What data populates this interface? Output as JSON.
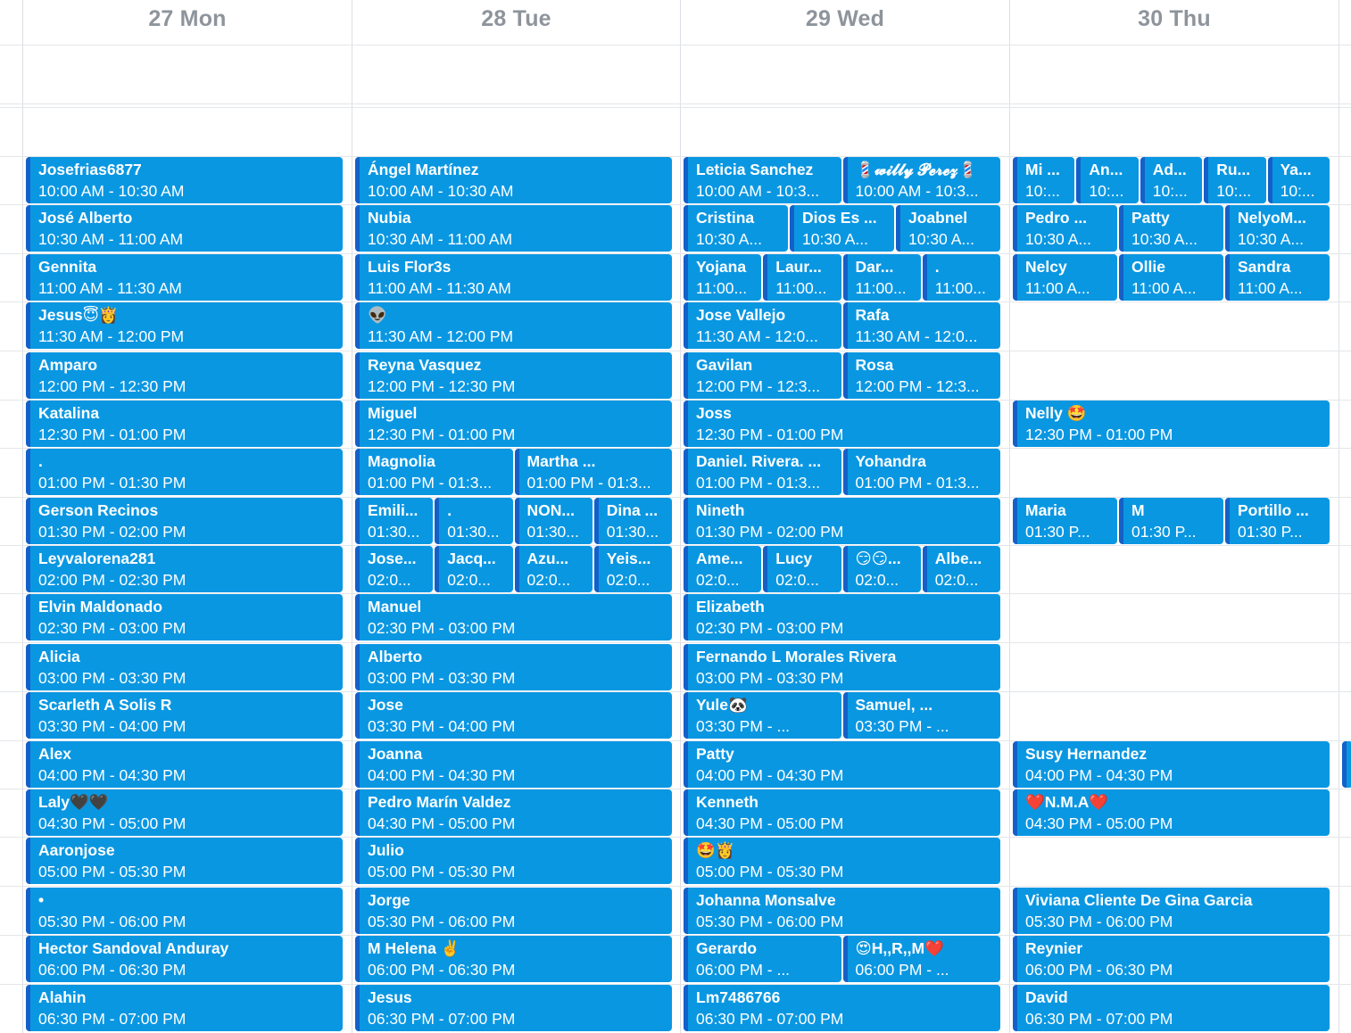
{
  "days": [
    {
      "label": "27 Mon"
    },
    {
      "label": "28 Tue"
    },
    {
      "label": "29 Wed"
    },
    {
      "label": "30 Thu"
    }
  ],
  "colors": {
    "event_bg": "#0a97e2",
    "event_border": "#1460c9",
    "header_text": "#8e949c",
    "grid": "#dcdfe4"
  },
  "events": [
    {
      "day": 0,
      "slot": 0,
      "col": 0,
      "span": 1,
      "of": 1,
      "title": "Josefrias6877",
      "time": "10:00 AM - 10:30 AM"
    },
    {
      "day": 0,
      "slot": 1,
      "col": 0,
      "span": 1,
      "of": 1,
      "title": "José Alberto",
      "time": "10:30 AM - 11:00 AM"
    },
    {
      "day": 0,
      "slot": 2,
      "col": 0,
      "span": 1,
      "of": 1,
      "title": "Gennita",
      "time": "11:00 AM - 11:30 AM"
    },
    {
      "day": 0,
      "slot": 3,
      "col": 0,
      "span": 1,
      "of": 1,
      "title": "Jesus😇👸",
      "time": "11:30 AM - 12:00 PM"
    },
    {
      "day": 0,
      "slot": 4,
      "col": 0,
      "span": 1,
      "of": 1,
      "title": "Amparo",
      "time": "12:00 PM - 12:30 PM"
    },
    {
      "day": 0,
      "slot": 5,
      "col": 0,
      "span": 1,
      "of": 1,
      "title": "Katalina",
      "time": "12:30 PM - 01:00 PM"
    },
    {
      "day": 0,
      "slot": 6,
      "col": 0,
      "span": 1,
      "of": 1,
      "title": ".",
      "time": "01:00 PM - 01:30 PM"
    },
    {
      "day": 0,
      "slot": 7,
      "col": 0,
      "span": 1,
      "of": 1,
      "title": "Gerson Recinos",
      "time": "01:30 PM - 02:00 PM"
    },
    {
      "day": 0,
      "slot": 8,
      "col": 0,
      "span": 1,
      "of": 1,
      "title": "Leyvalorena281",
      "time": "02:00 PM - 02:30 PM"
    },
    {
      "day": 0,
      "slot": 9,
      "col": 0,
      "span": 1,
      "of": 1,
      "title": "Elvin Maldonado",
      "time": "02:30 PM - 03:00 PM"
    },
    {
      "day": 0,
      "slot": 10,
      "col": 0,
      "span": 1,
      "of": 1,
      "title": "Alicia",
      "time": "03:00 PM - 03:30 PM"
    },
    {
      "day": 0,
      "slot": 11,
      "col": 0,
      "span": 1,
      "of": 1,
      "title": "Scarleth A Solis R",
      "time": "03:30 PM - 04:00 PM"
    },
    {
      "day": 0,
      "slot": 12,
      "col": 0,
      "span": 1,
      "of": 1,
      "title": "Alex",
      "time": "04:00 PM - 04:30 PM"
    },
    {
      "day": 0,
      "slot": 13,
      "col": 0,
      "span": 1,
      "of": 1,
      "title": "Laly🖤🖤",
      "time": "04:30 PM - 05:00 PM"
    },
    {
      "day": 0,
      "slot": 14,
      "col": 0,
      "span": 1,
      "of": 1,
      "title": "Aaronjose",
      "time": "05:00 PM - 05:30 PM"
    },
    {
      "day": 0,
      "slot": 15,
      "col": 0,
      "span": 1,
      "of": 1,
      "title": "•",
      "time": "05:30 PM - 06:00 PM"
    },
    {
      "day": 0,
      "slot": 16,
      "col": 0,
      "span": 1,
      "of": 1,
      "title": "Hector Sandoval Anduray",
      "time": "06:00 PM - 06:30 PM"
    },
    {
      "day": 0,
      "slot": 17,
      "col": 0,
      "span": 1,
      "of": 1,
      "title": "Alahin",
      "time": "06:30 PM - 07:00 PM"
    },
    {
      "day": 1,
      "slot": 0,
      "col": 0,
      "span": 1,
      "of": 1,
      "title": "Ángel Martínez",
      "time": "10:00 AM - 10:30 AM"
    },
    {
      "day": 1,
      "slot": 1,
      "col": 0,
      "span": 1,
      "of": 1,
      "title": "Nubia",
      "time": "10:30 AM - 11:00 AM"
    },
    {
      "day": 1,
      "slot": 2,
      "col": 0,
      "span": 1,
      "of": 1,
      "title": "Luis Flor3s",
      "time": "11:00 AM - 11:30 AM"
    },
    {
      "day": 1,
      "slot": 3,
      "col": 0,
      "span": 1,
      "of": 1,
      "title": "👽",
      "time": "11:30 AM - 12:00 PM"
    },
    {
      "day": 1,
      "slot": 4,
      "col": 0,
      "span": 1,
      "of": 1,
      "title": "Reyna Vasquez",
      "time": "12:00 PM - 12:30 PM"
    },
    {
      "day": 1,
      "slot": 5,
      "col": 0,
      "span": 1,
      "of": 1,
      "title": "Miguel",
      "time": "12:30 PM - 01:00 PM"
    },
    {
      "day": 1,
      "slot": 6,
      "col": 0,
      "span": 1,
      "of": 2,
      "title": "Magnolia",
      "time": "01:00 PM - 01:3..."
    },
    {
      "day": 1,
      "slot": 6,
      "col": 1,
      "span": 1,
      "of": 2,
      "title": "Martha  ...",
      "time": "01:00 PM - 01:3..."
    },
    {
      "day": 1,
      "slot": 7,
      "col": 0,
      "span": 1,
      "of": 4,
      "title": "Emili...",
      "time": "01:30..."
    },
    {
      "day": 1,
      "slot": 7,
      "col": 1,
      "span": 1,
      "of": 4,
      "title": ".",
      "time": "01:30..."
    },
    {
      "day": 1,
      "slot": 7,
      "col": 2,
      "span": 1,
      "of": 4,
      "title": "NON...",
      "time": "01:30..."
    },
    {
      "day": 1,
      "slot": 7,
      "col": 3,
      "span": 1,
      "of": 4,
      "title": "Dina ...",
      "time": "01:30..."
    },
    {
      "day": 1,
      "slot": 8,
      "col": 0,
      "span": 1,
      "of": 4,
      "title": "Jose...",
      "time": "02:0..."
    },
    {
      "day": 1,
      "slot": 8,
      "col": 1,
      "span": 1,
      "of": 4,
      "title": "Jacq...",
      "time": "02:0..."
    },
    {
      "day": 1,
      "slot": 8,
      "col": 2,
      "span": 1,
      "of": 4,
      "title": "Azu...",
      "time": "02:0..."
    },
    {
      "day": 1,
      "slot": 8,
      "col": 3,
      "span": 1,
      "of": 4,
      "title": "Yeis...",
      "time": "02:0..."
    },
    {
      "day": 1,
      "slot": 9,
      "col": 0,
      "span": 1,
      "of": 1,
      "title": "Manuel",
      "time": "02:30 PM - 03:00 PM"
    },
    {
      "day": 1,
      "slot": 10,
      "col": 0,
      "span": 1,
      "of": 1,
      "title": "Alberto",
      "time": "03:00 PM - 03:30 PM"
    },
    {
      "day": 1,
      "slot": 11,
      "col": 0,
      "span": 1,
      "of": 1,
      "title": "Jose",
      "time": "03:30 PM - 04:00 PM"
    },
    {
      "day": 1,
      "slot": 12,
      "col": 0,
      "span": 1,
      "of": 1,
      "title": "Joanna",
      "time": "04:00 PM - 04:30 PM"
    },
    {
      "day": 1,
      "slot": 13,
      "col": 0,
      "span": 1,
      "of": 1,
      "title": "Pedro Marín Valdez",
      "time": "04:30 PM - 05:00 PM"
    },
    {
      "day": 1,
      "slot": 14,
      "col": 0,
      "span": 1,
      "of": 1,
      "title": "Julio",
      "time": "05:00 PM - 05:30 PM"
    },
    {
      "day": 1,
      "slot": 15,
      "col": 0,
      "span": 1,
      "of": 1,
      "title": "Jorge",
      "time": "05:30 PM - 06:00 PM"
    },
    {
      "day": 1,
      "slot": 16,
      "col": 0,
      "span": 1,
      "of": 1,
      "title": "M Helena ✌️",
      "time": "06:00 PM - 06:30 PM"
    },
    {
      "day": 1,
      "slot": 17,
      "col": 0,
      "span": 1,
      "of": 1,
      "title": "Jesus",
      "time": "06:30 PM - 07:00 PM"
    },
    {
      "day": 2,
      "slot": 0,
      "col": 0,
      "span": 1,
      "of": 2,
      "title": "Leticia Sanchez",
      "time": "10:00 AM - 10:3..."
    },
    {
      "day": 2,
      "slot": 0,
      "col": 1,
      "span": 1,
      "of": 2,
      "title": "💈𝔀𝓲𝓵𝓵𝔂 𝓟𝓮𝓻𝓮𝔃💈",
      "time": "10:00 AM - 10:3..."
    },
    {
      "day": 2,
      "slot": 1,
      "col": 0,
      "span": 1,
      "of": 3,
      "title": "Cristina",
      "time": "10:30 A..."
    },
    {
      "day": 2,
      "slot": 1,
      "col": 1,
      "span": 1,
      "of": 3,
      "title": "Dios Es ...",
      "time": "10:30 A..."
    },
    {
      "day": 2,
      "slot": 1,
      "col": 2,
      "span": 1,
      "of": 3,
      "title": "Joabnel",
      "time": "10:30 A..."
    },
    {
      "day": 2,
      "slot": 2,
      "col": 0,
      "span": 1,
      "of": 4,
      "title": "Yojana",
      "time": "11:00..."
    },
    {
      "day": 2,
      "slot": 2,
      "col": 1,
      "span": 1,
      "of": 4,
      "title": "Laur...",
      "time": "11:00..."
    },
    {
      "day": 2,
      "slot": 2,
      "col": 2,
      "span": 1,
      "of": 4,
      "title": "Dar...",
      "time": "11:00..."
    },
    {
      "day": 2,
      "slot": 2,
      "col": 3,
      "span": 1,
      "of": 4,
      "title": ".",
      "time": "11:00..."
    },
    {
      "day": 2,
      "slot": 3,
      "col": 0,
      "span": 1,
      "of": 2,
      "title": "Jose Vallejo",
      "time": "11:30 AM - 12:0..."
    },
    {
      "day": 2,
      "slot": 3,
      "col": 1,
      "span": 1,
      "of": 2,
      "title": "Rafa",
      "time": "11:30 AM - 12:0..."
    },
    {
      "day": 2,
      "slot": 4,
      "col": 0,
      "span": 1,
      "of": 2,
      "title": "Gavilan",
      "time": "12:00 PM - 12:3..."
    },
    {
      "day": 2,
      "slot": 4,
      "col": 1,
      "span": 1,
      "of": 2,
      "title": "Rosa",
      "time": "12:00 PM - 12:3..."
    },
    {
      "day": 2,
      "slot": 5,
      "col": 0,
      "span": 1,
      "of": 1,
      "title": "Joss",
      "time": "12:30 PM - 01:00 PM"
    },
    {
      "day": 2,
      "slot": 6,
      "col": 0,
      "span": 1,
      "of": 2,
      "title": "Daniel. Rivera. ...",
      "time": "01:00 PM - 01:3..."
    },
    {
      "day": 2,
      "slot": 6,
      "col": 1,
      "span": 1,
      "of": 2,
      "title": "Yohandra",
      "time": "01:00 PM - 01:3..."
    },
    {
      "day": 2,
      "slot": 7,
      "col": 0,
      "span": 1,
      "of": 1,
      "title": "Nineth",
      "time": "01:30 PM - 02:00 PM"
    },
    {
      "day": 2,
      "slot": 8,
      "col": 0,
      "span": 1,
      "of": 4,
      "title": "Ame...",
      "time": "02:0..."
    },
    {
      "day": 2,
      "slot": 8,
      "col": 1,
      "span": 1,
      "of": 4,
      "title": "Lucy",
      "time": "02:0..."
    },
    {
      "day": 2,
      "slot": 8,
      "col": 2,
      "span": 1,
      "of": 4,
      "title": "😏😏...",
      "time": "02:0..."
    },
    {
      "day": 2,
      "slot": 8,
      "col": 3,
      "span": 1,
      "of": 4,
      "title": "Albe...",
      "time": "02:0..."
    },
    {
      "day": 2,
      "slot": 9,
      "col": 0,
      "span": 1,
      "of": 1,
      "title": "Elizabeth",
      "time": "02:30 PM - 03:00 PM"
    },
    {
      "day": 2,
      "slot": 10,
      "col": 0,
      "span": 1,
      "of": 1,
      "title": "Fernando L Morales Rivera",
      "time": "03:00 PM - 03:30 PM"
    },
    {
      "day": 2,
      "slot": 11,
      "col": 0,
      "span": 1,
      "of": 2,
      "title": "Yule🐼",
      "time": "03:30 PM - ..."
    },
    {
      "day": 2,
      "slot": 11,
      "col": 1,
      "span": 1,
      "of": 2,
      "title": "Samuel, ...",
      "time": "03:30 PM - ..."
    },
    {
      "day": 2,
      "slot": 12,
      "col": 0,
      "span": 1,
      "of": 1,
      "title": "Patty",
      "time": "04:00 PM - 04:30 PM"
    },
    {
      "day": 2,
      "slot": 13,
      "col": 0,
      "span": 1,
      "of": 1,
      "title": "Kenneth",
      "time": "04:30 PM - 05:00 PM"
    },
    {
      "day": 2,
      "slot": 14,
      "col": 0,
      "span": 1,
      "of": 1,
      "title": "🤩👸",
      "time": "05:00 PM - 05:30 PM"
    },
    {
      "day": 2,
      "slot": 15,
      "col": 0,
      "span": 1,
      "of": 1,
      "title": "Johanna Monsalve",
      "time": "05:30 PM - 06:00 PM"
    },
    {
      "day": 2,
      "slot": 16,
      "col": 0,
      "span": 1,
      "of": 2,
      "title": "Gerardo",
      "time": "06:00 PM - ..."
    },
    {
      "day": 2,
      "slot": 16,
      "col": 1,
      "span": 1,
      "of": 2,
      "title": "😍H,,R,,M❤️",
      "time": "06:00 PM - ..."
    },
    {
      "day": 2,
      "slot": 17,
      "col": 0,
      "span": 1,
      "of": 1,
      "title": "Lm7486766",
      "time": "06:30 PM - 07:00 PM"
    },
    {
      "day": 3,
      "slot": 0,
      "col": 0,
      "span": 1,
      "of": 5,
      "title": "Mi ...",
      "time": "10:..."
    },
    {
      "day": 3,
      "slot": 0,
      "col": 1,
      "span": 1,
      "of": 5,
      "title": "An...",
      "time": "10:..."
    },
    {
      "day": 3,
      "slot": 0,
      "col": 2,
      "span": 1,
      "of": 5,
      "title": "Ad...",
      "time": "10:..."
    },
    {
      "day": 3,
      "slot": 0,
      "col": 3,
      "span": 1,
      "of": 5,
      "title": "Ru...",
      "time": "10:..."
    },
    {
      "day": 3,
      "slot": 0,
      "col": 4,
      "span": 1,
      "of": 5,
      "title": "Ya...",
      "time": "10:..."
    },
    {
      "day": 3,
      "slot": 1,
      "col": 0,
      "span": 1,
      "of": 3,
      "title": "Pedro ...",
      "time": "10:30 A..."
    },
    {
      "day": 3,
      "slot": 1,
      "col": 1,
      "span": 1,
      "of": 3,
      "title": "Patty",
      "time": "10:30 A..."
    },
    {
      "day": 3,
      "slot": 1,
      "col": 2,
      "span": 1,
      "of": 3,
      "title": "NelyoM...",
      "time": "10:30 A..."
    },
    {
      "day": 3,
      "slot": 2,
      "col": 0,
      "span": 1,
      "of": 3,
      "title": "Nelcy",
      "time": "11:00 A..."
    },
    {
      "day": 3,
      "slot": 2,
      "col": 1,
      "span": 1,
      "of": 3,
      "title": "Ollie",
      "time": "11:00 A..."
    },
    {
      "day": 3,
      "slot": 2,
      "col": 2,
      "span": 1,
      "of": 3,
      "title": "Sandra",
      "time": "11:00 A..."
    },
    {
      "day": 3,
      "slot": 5,
      "col": 0,
      "span": 1,
      "of": 1,
      "title": "Nelly 🤩",
      "time": "12:30 PM - 01:00 PM"
    },
    {
      "day": 3,
      "slot": 7,
      "col": 0,
      "span": 1,
      "of": 3,
      "title": "Maria",
      "time": "01:30 P..."
    },
    {
      "day": 3,
      "slot": 7,
      "col": 1,
      "span": 1,
      "of": 3,
      "title": "M",
      "time": "01:30 P..."
    },
    {
      "day": 3,
      "slot": 7,
      "col": 2,
      "span": 1,
      "of": 3,
      "title": "Portillo ...",
      "time": "01:30 P..."
    },
    {
      "day": 3,
      "slot": 12,
      "col": 0,
      "span": 1,
      "of": 1,
      "title": "Susy Hernandez",
      "time": "04:00 PM - 04:30 PM"
    },
    {
      "day": 3,
      "slot": 13,
      "col": 0,
      "span": 1,
      "of": 1,
      "title": "❤️N.M.A❤️",
      "time": "04:30 PM - 05:00 PM"
    },
    {
      "day": 3,
      "slot": 15,
      "col": 0,
      "span": 1,
      "of": 1,
      "title": "Viviana Cliente De Gina Garcia",
      "time": "05:30 PM - 06:00 PM"
    },
    {
      "day": 3,
      "slot": 16,
      "col": 0,
      "span": 1,
      "of": 1,
      "title": "Reynier",
      "time": "06:00 PM - 06:30 PM"
    },
    {
      "day": 3,
      "slot": 17,
      "col": 0,
      "span": 1,
      "of": 1,
      "title": "David",
      "time": "06:30 PM - 07:00 PM"
    }
  ]
}
